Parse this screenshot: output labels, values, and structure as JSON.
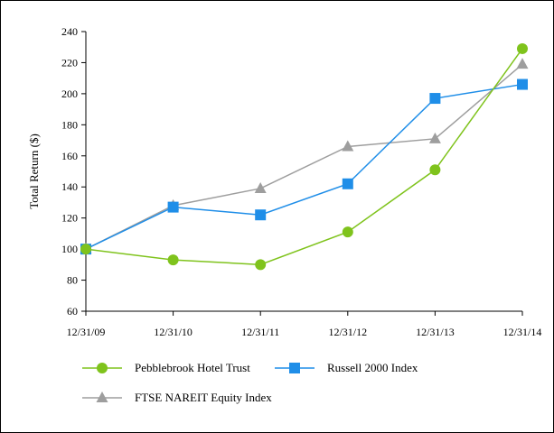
{
  "chart_data": {
    "type": "line",
    "title": "",
    "xlabel": "",
    "ylabel": "Total Return ($)",
    "categories": [
      "12/31/09",
      "12/31/10",
      "12/31/11",
      "12/31/12",
      "12/31/13",
      "12/31/14"
    ],
    "ylim": [
      60,
      240
    ],
    "yticks": [
      60,
      80,
      100,
      120,
      140,
      160,
      180,
      200,
      220,
      240
    ],
    "grid": false,
    "legend_position": "bottom",
    "series": [
      {
        "name": "Pebblebrook Hotel Trust",
        "color": "#7fc31c",
        "marker": "circle",
        "values": [
          100,
          93,
          90,
          111,
          151,
          229
        ]
      },
      {
        "name": "Russell 2000 Index",
        "color": "#1f8ee8",
        "marker": "square",
        "values": [
          100,
          127,
          122,
          142,
          197,
          206
        ]
      },
      {
        "name": "FTSE NAREIT Equity Index",
        "color": "#9e9e9e",
        "marker": "triangle",
        "values": [
          100,
          128,
          139,
          166,
          171,
          219
        ]
      }
    ]
  }
}
